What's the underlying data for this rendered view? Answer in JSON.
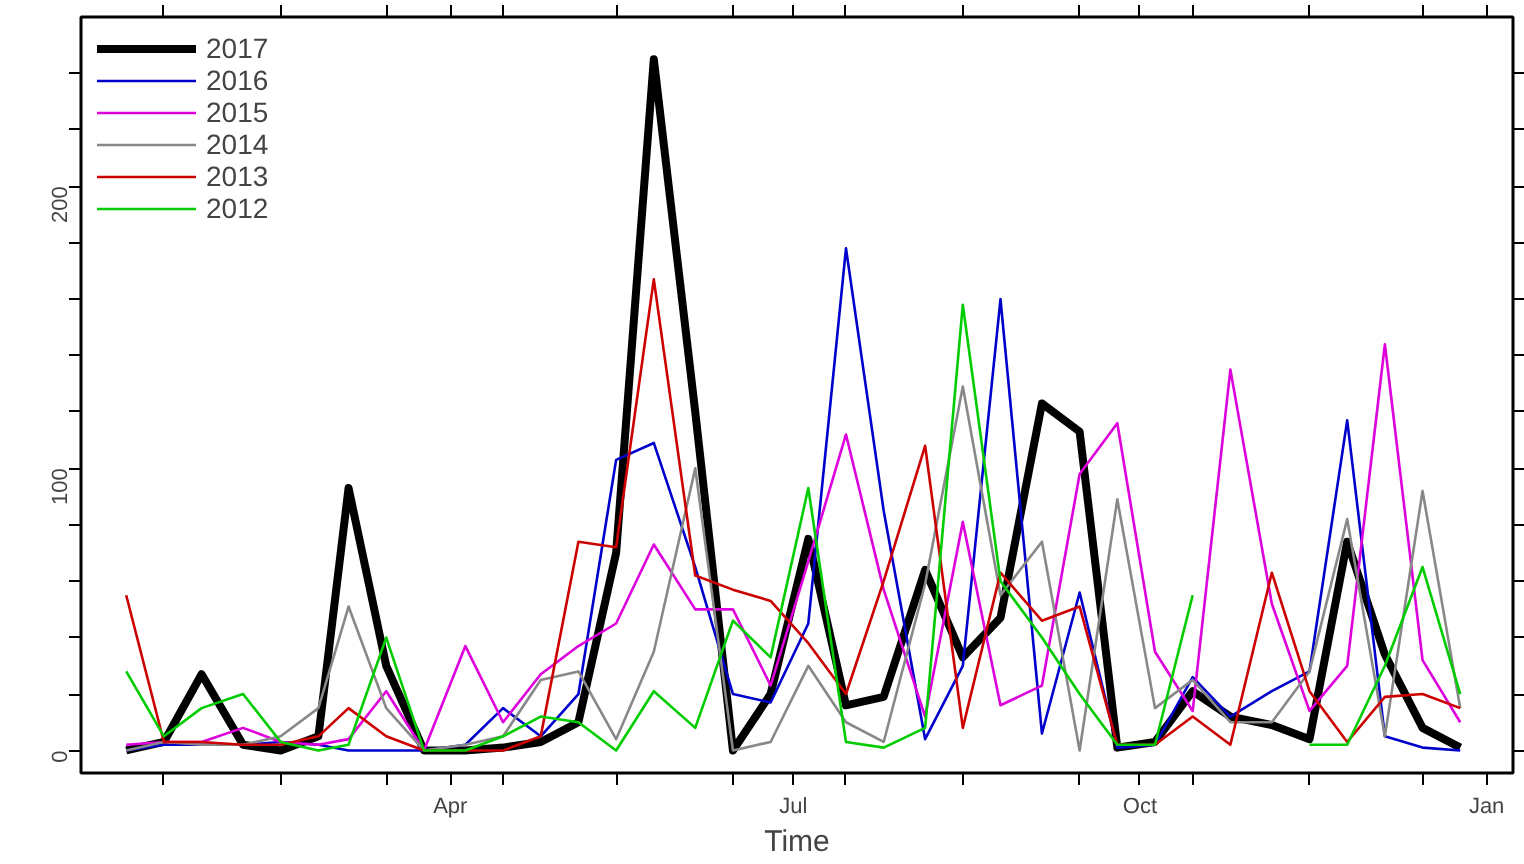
{
  "chart_data": {
    "type": "line",
    "xlabel": "Time",
    "x": [
      "2017-01-05",
      "2017-01-15",
      "2017-01-25",
      "2017-02-05",
      "2017-02-15",
      "2017-02-25",
      "2017-03-05",
      "2017-03-15",
      "2017-03-25",
      "2017-04-05",
      "2017-04-15",
      "2017-04-25",
      "2017-05-05",
      "2017-05-15",
      "2017-05-25",
      "2017-06-05",
      "2017-06-15",
      "2017-06-25",
      "2017-07-05",
      "2017-07-15",
      "2017-07-25",
      "2017-08-05",
      "2017-08-15",
      "2017-08-25",
      "2017-09-05",
      "2017-09-15",
      "2017-09-25",
      "2017-10-05",
      "2017-10-15",
      "2017-10-25",
      "2017-11-05",
      "2017-11-15",
      "2017-11-25",
      "2017-12-05",
      "2017-12-15",
      "2017-12-25"
    ],
    "xlim": [
      "2016-12-24",
      "2018-01-08"
    ],
    "xticks": [
      {
        "value": "2017-01-15",
        "label": null
      },
      {
        "value": "2017-02-15",
        "label": null
      },
      {
        "value": "2017-03-15",
        "label": null
      },
      {
        "value": "2017-04-01",
        "label": "Apr"
      },
      {
        "value": "2017-04-15",
        "label": null
      },
      {
        "value": "2017-05-15",
        "label": null
      },
      {
        "value": "2017-06-15",
        "label": null
      },
      {
        "value": "2017-07-01",
        "label": "Jul"
      },
      {
        "value": "2017-07-15",
        "label": null
      },
      {
        "value": "2017-08-15",
        "label": null
      },
      {
        "value": "2017-09-15",
        "label": null
      },
      {
        "value": "2017-10-01",
        "label": "Oct"
      },
      {
        "value": "2017-10-15",
        "label": null
      },
      {
        "value": "2017-11-15",
        "label": null
      },
      {
        "value": "2017-12-15",
        "label": null
      },
      {
        "value": "2018-01-01",
        "label": "Jan"
      }
    ],
    "ylim": [
      -8,
      260
    ],
    "yticks": [
      0,
      {
        "value": 20,
        "label": null
      },
      {
        "value": 40,
        "label": null
      },
      {
        "value": 60,
        "label": null
      },
      {
        "value": 80,
        "label": null
      },
      100,
      {
        "value": 120,
        "label": null
      },
      {
        "value": 140,
        "label": null
      },
      {
        "value": 160,
        "label": null
      },
      {
        "value": 180,
        "label": null
      },
      200,
      {
        "value": 220,
        "label": null
      },
      {
        "value": 240,
        "label": null
      }
    ],
    "legend": "top left",
    "line_style": "solid",
    "series": [
      {
        "name": "2017",
        "color": "#000000",
        "values": [
          0,
          3,
          27,
          2,
          0,
          5,
          93,
          30,
          0,
          0,
          1,
          3,
          10,
          70,
          245,
          120,
          0,
          20,
          75,
          16,
          19,
          64,
          33,
          47,
          123,
          113,
          1,
          3,
          21,
          12,
          9,
          4,
          74,
          34,
          8,
          1
        ]
      },
      {
        "name": "2016",
        "color": "#0000cc",
        "values": [
          0,
          2,
          2,
          2,
          3,
          2,
          0,
          0,
          0,
          2,
          15,
          5,
          20,
          103,
          109,
          65,
          20,
          17,
          45,
          178,
          85,
          4,
          30,
          160,
          6,
          56,
          1,
          2,
          26,
          12,
          21,
          28,
          117,
          5,
          1,
          0
        ]
      },
      {
        "name": "2015",
        "color": "#dd00dd",
        "values": [
          2,
          3,
          3,
          8,
          3,
          2,
          4,
          21,
          0,
          37,
          10,
          27,
          37,
          45,
          73,
          50,
          50,
          23,
          67,
          112,
          57,
          12,
          81,
          16,
          23,
          98,
          116,
          35,
          14,
          135,
          52,
          14,
          30,
          144,
          32,
          10
        ]
      },
      {
        "name": "2014",
        "color": "#888888",
        "values": [
          0,
          3,
          2,
          2,
          5,
          15,
          51,
          15,
          0,
          2,
          5,
          25,
          28,
          4,
          35,
          100,
          0,
          3,
          30,
          10,
          3,
          59,
          129,
          55,
          74,
          0,
          89,
          15,
          25,
          10,
          10,
          28,
          82,
          5,
          92,
          15
        ]
      },
      {
        "name": "2013",
        "color": "#cc0000",
        "values": [
          55,
          3,
          3,
          2,
          2,
          5,
          15,
          5,
          0,
          0,
          0,
          5,
          74,
          72,
          167,
          62,
          57,
          53,
          38,
          20,
          60,
          108,
          8,
          63,
          46,
          51,
          2,
          2,
          12,
          2,
          63,
          21,
          3,
          19,
          20,
          15
        ]
      },
      {
        "name": "2012",
        "color": "#00cc00",
        "values": [
          28,
          5,
          15,
          20,
          3,
          0,
          2,
          40,
          0,
          0,
          5,
          12,
          10,
          0,
          21,
          8,
          46,
          33,
          93,
          3,
          1,
          8,
          158,
          60,
          40,
          20,
          2,
          2,
          55,
          null,
          null,
          2,
          2,
          30,
          65,
          20
        ]
      }
    ]
  }
}
